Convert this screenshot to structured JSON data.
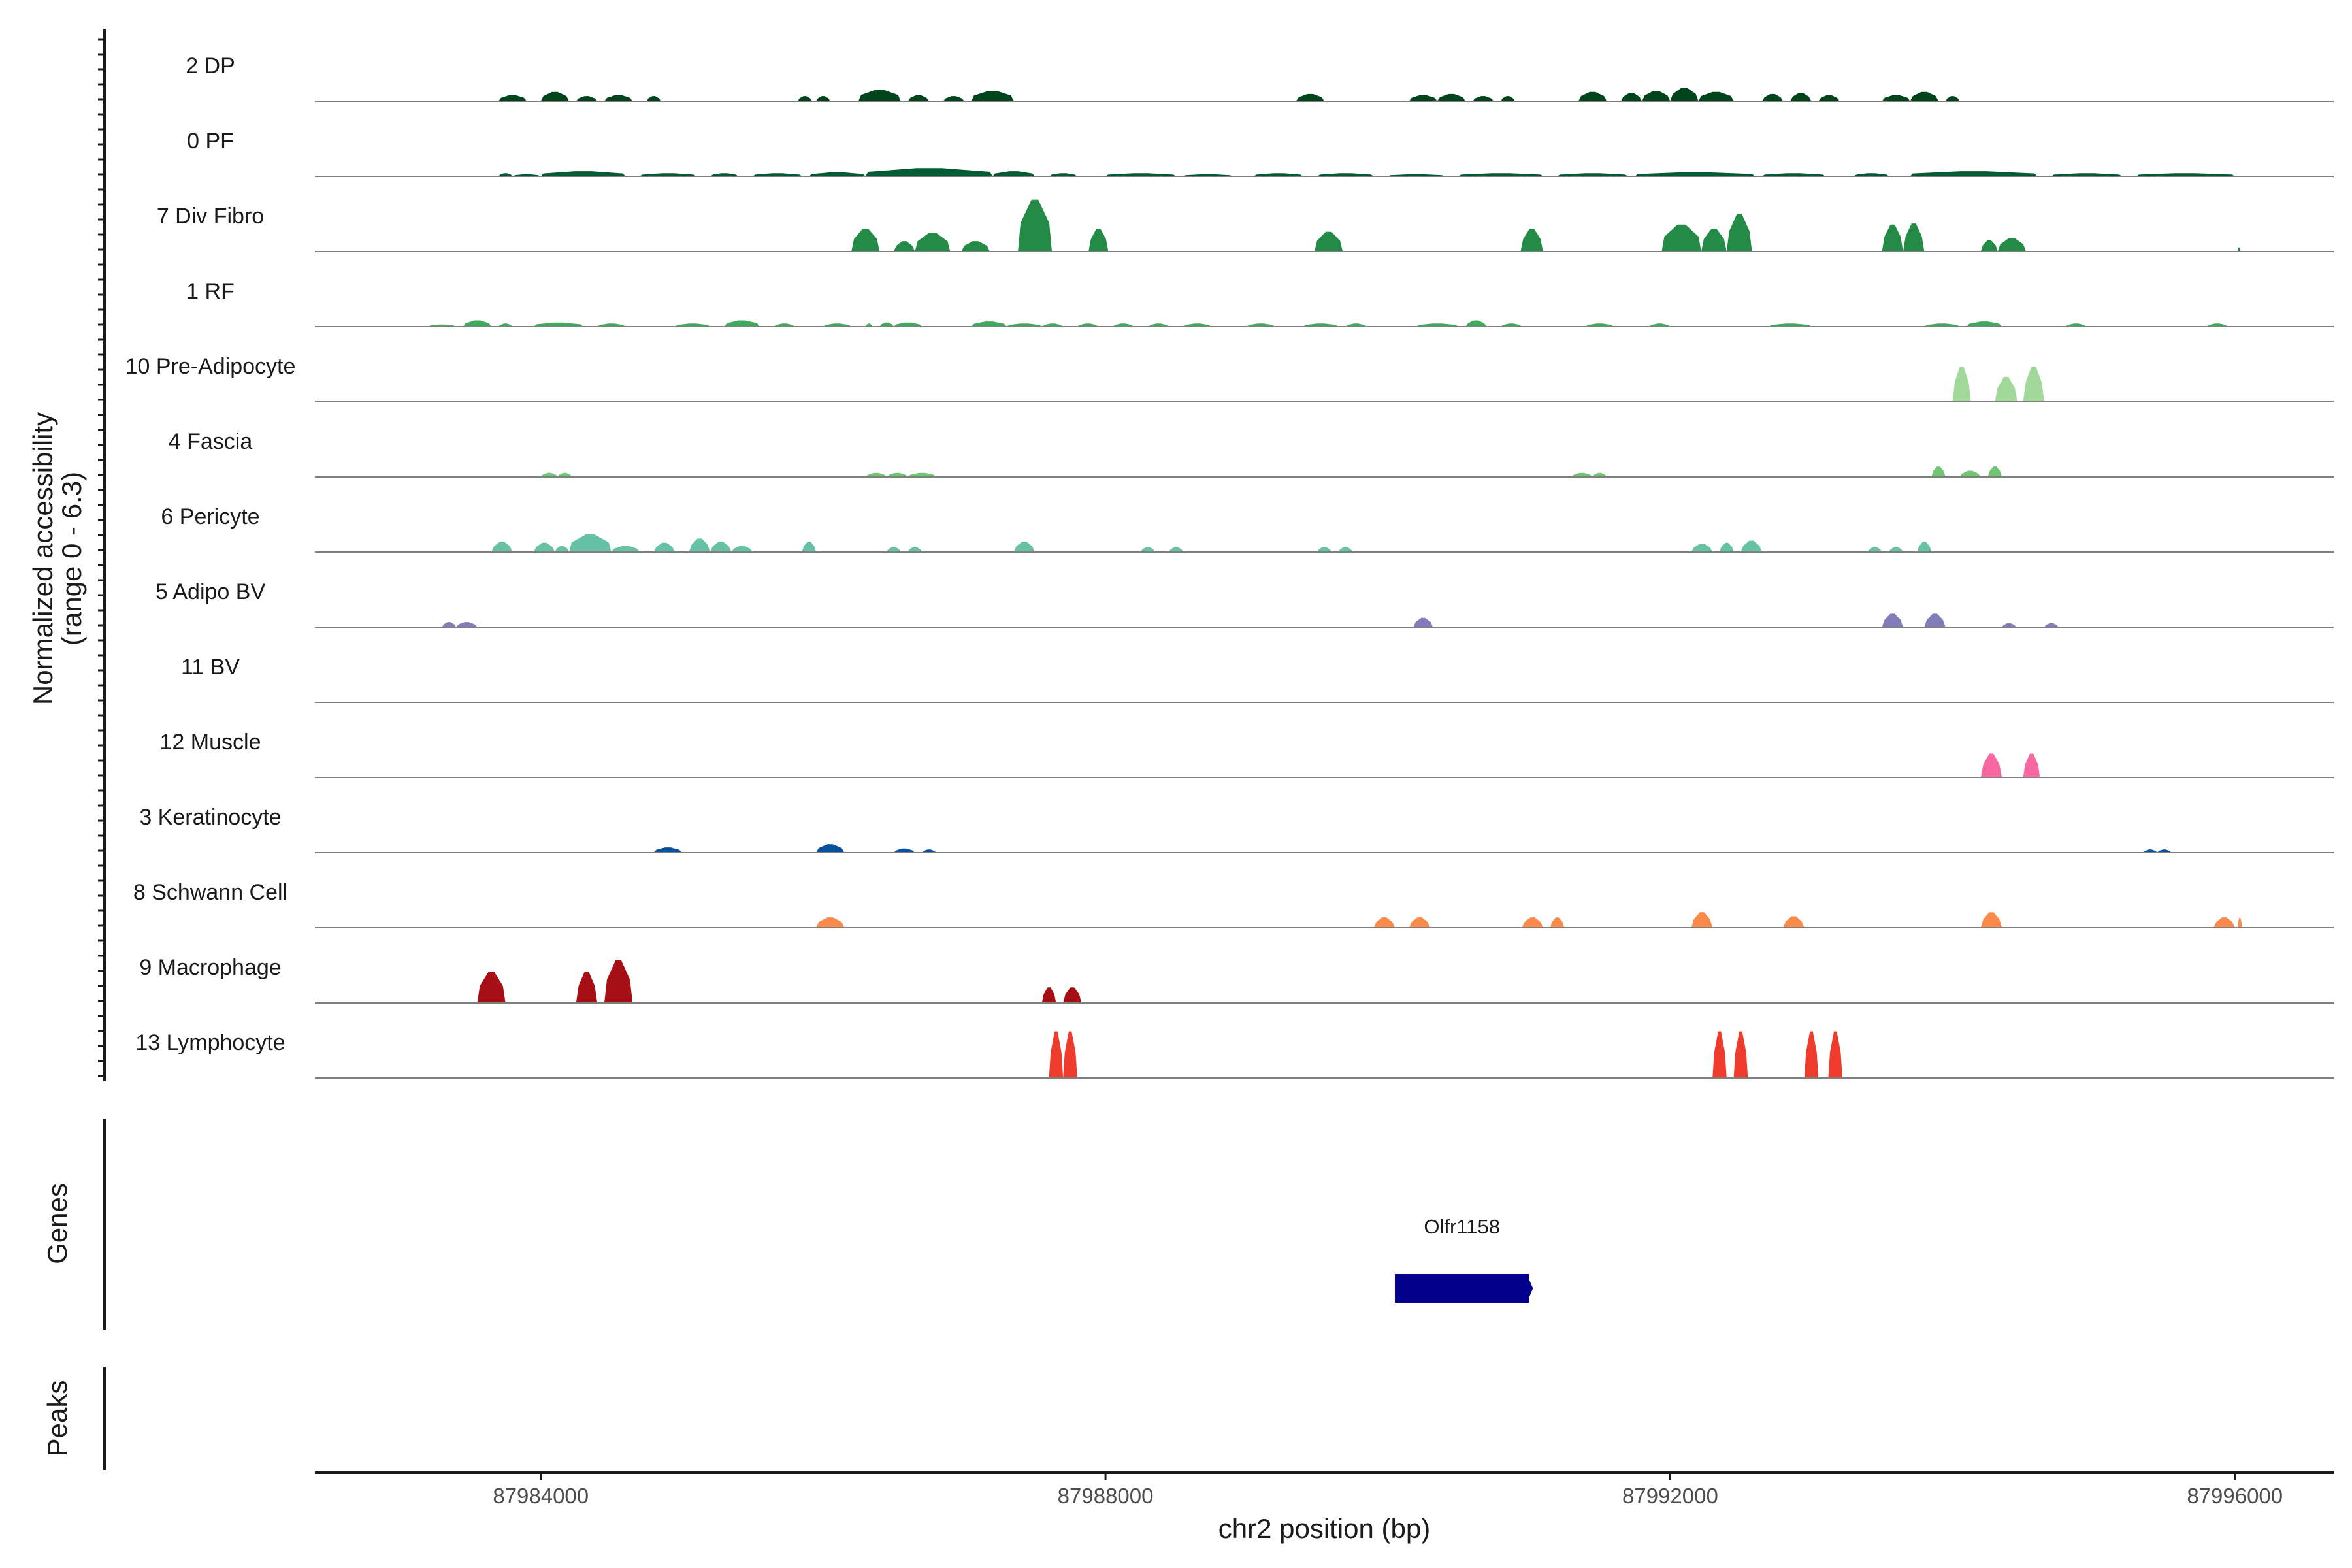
{
  "chart_data": {
    "type": "area",
    "subtype": "coverage-tracks",
    "title": "",
    "ylabel_lines": [
      "Normalized accessibility",
      "(range 0 - 6.3)"
    ],
    "y_range": [
      0,
      6.3
    ],
    "xlabel": "chr2 position (bp)",
    "xlim": [
      87982400,
      87996700
    ],
    "x_ticks": [
      87984000,
      87988000,
      87992000,
      87996000
    ],
    "x_tick_labels": [
      "87984000",
      "87988000",
      "87992000",
      "87996000"
    ],
    "genes_label": "Genes",
    "peaks_label": "Peaks",
    "genes": [
      {
        "name": "Olfr1158",
        "start": 87990050,
        "end": 87991000,
        "color": "#00008B"
      }
    ],
    "tracks": [
      {
        "name": "2 DP",
        "color": "#00441B",
        "peaks": [
          [
            87983700,
            87983900,
            0.6
          ],
          [
            87984000,
            87984200,
            0.9
          ],
          [
            87984250,
            87984400,
            0.5
          ],
          [
            87984450,
            87984650,
            0.6
          ],
          [
            87984750,
            87984850,
            0.5
          ],
          [
            87985820,
            87985920,
            0.5
          ],
          [
            87985950,
            87986050,
            0.5
          ],
          [
            87986250,
            87986550,
            1.1
          ],
          [
            87986600,
            87986750,
            0.6
          ],
          [
            87986850,
            87987000,
            0.5
          ],
          [
            87987050,
            87987350,
            1.0
          ],
          [
            87989350,
            87989550,
            0.7
          ],
          [
            87990150,
            87990350,
            0.6
          ],
          [
            87990350,
            87990550,
            0.7
          ],
          [
            87990600,
            87990750,
            0.5
          ],
          [
            87990800,
            87990900,
            0.5
          ],
          [
            87991350,
            87991550,
            0.9
          ],
          [
            87991650,
            87991800,
            0.8
          ],
          [
            87991800,
            87992000,
            1.0
          ],
          [
            87992000,
            87992200,
            1.3
          ],
          [
            87992200,
            87992450,
            0.9
          ],
          [
            87992650,
            87992800,
            0.7
          ],
          [
            87992850,
            87993000,
            0.8
          ],
          [
            87993050,
            87993200,
            0.6
          ],
          [
            87993500,
            87993700,
            0.6
          ],
          [
            87993700,
            87993900,
            0.9
          ],
          [
            87993950,
            87994050,
            0.5
          ]
        ]
      },
      {
        "name": "0 PF",
        "color": "#005A32",
        "peaks": [
          [
            87983700,
            87983800,
            0.3
          ],
          [
            87983800,
            87984000,
            0.2
          ],
          [
            87984000,
            87984600,
            0.5
          ],
          [
            87984700,
            87985100,
            0.3
          ],
          [
            87985200,
            87985400,
            0.3
          ],
          [
            87985500,
            87985850,
            0.3
          ],
          [
            87985900,
            87986300,
            0.4
          ],
          [
            87986300,
            87987200,
            0.8
          ],
          [
            87987200,
            87987500,
            0.5
          ],
          [
            87987600,
            87987800,
            0.3
          ],
          [
            87988000,
            87988500,
            0.3
          ],
          [
            87988550,
            87988900,
            0.2
          ],
          [
            87989050,
            87989400,
            0.3
          ],
          [
            87989500,
            87989900,
            0.3
          ],
          [
            87990000,
            87990400,
            0.2
          ],
          [
            87990500,
            87991100,
            0.3
          ],
          [
            87991200,
            87991700,
            0.3
          ],
          [
            87991750,
            87992600,
            0.4
          ],
          [
            87992650,
            87993100,
            0.3
          ],
          [
            87993300,
            87993550,
            0.3
          ],
          [
            87993700,
            87994600,
            0.5
          ],
          [
            87994700,
            87995200,
            0.3
          ],
          [
            87995300,
            87996000,
            0.3
          ]
        ]
      },
      {
        "name": "7 Div Fibro",
        "color": "#238B45",
        "peaks": [
          [
            87986200,
            87986400,
            2.2
          ],
          [
            87986500,
            87986650,
            1.0
          ],
          [
            87986650,
            87986900,
            1.8
          ],
          [
            87986980,
            87987180,
            1.0
          ],
          [
            87987380,
            87987620,
            5.0
          ],
          [
            87987880,
            87988020,
            2.2
          ],
          [
            87989480,
            87989680,
            1.9
          ],
          [
            87990940,
            87991100,
            2.2
          ],
          [
            87991940,
            87992220,
            2.6
          ],
          [
            87992220,
            87992400,
            2.2
          ],
          [
            87992400,
            87992580,
            3.6
          ],
          [
            87993500,
            87993650,
            2.6
          ],
          [
            87993650,
            87993800,
            2.7
          ],
          [
            87994200,
            87994320,
            1.1
          ],
          [
            87994320,
            87994520,
            1.3
          ],
          [
            87996020,
            87996040,
            0.4
          ]
        ]
      },
      {
        "name": "1 RF",
        "color": "#41AB5D",
        "peaks": [
          [
            87983200,
            87983400,
            0.2
          ],
          [
            87983450,
            87983650,
            0.6
          ],
          [
            87983700,
            87983800,
            0.3
          ],
          [
            87983950,
            87984300,
            0.4
          ],
          [
            87984400,
            87984600,
            0.3
          ],
          [
            87984950,
            87985200,
            0.3
          ],
          [
            87985300,
            87985550,
            0.6
          ],
          [
            87985650,
            87985800,
            0.3
          ],
          [
            87986000,
            87986200,
            0.3
          ],
          [
            87986300,
            87986350,
            0.3
          ],
          [
            87986400,
            87986500,
            0.4
          ],
          [
            87986500,
            87986700,
            0.4
          ],
          [
            87987050,
            87987300,
            0.5
          ],
          [
            87987300,
            87987550,
            0.3
          ],
          [
            87987550,
            87987700,
            0.3
          ],
          [
            87987800,
            87987950,
            0.3
          ],
          [
            87988050,
            87988200,
            0.3
          ],
          [
            87988300,
            87988450,
            0.3
          ],
          [
            87988550,
            87988750,
            0.3
          ],
          [
            87989000,
            87989200,
            0.3
          ],
          [
            87989400,
            87989650,
            0.3
          ],
          [
            87989700,
            87989850,
            0.3
          ],
          [
            87990200,
            87990500,
            0.3
          ],
          [
            87990550,
            87990700,
            0.6
          ],
          [
            87990800,
            87990950,
            0.3
          ],
          [
            87991400,
            87991600,
            0.3
          ],
          [
            87991850,
            87992000,
            0.3
          ],
          [
            87992700,
            87993000,
            0.3
          ],
          [
            87993800,
            87994050,
            0.3
          ],
          [
            87994100,
            87994350,
            0.5
          ],
          [
            87994800,
            87994950,
            0.3
          ],
          [
            87995800,
            87995950,
            0.3
          ]
        ]
      },
      {
        "name": "10 Pre-Adipocyte",
        "color": "#A1D99B",
        "peaks": [
          [
            87994000,
            87994130,
            3.4
          ],
          [
            87994300,
            87994460,
            2.4
          ],
          [
            87994500,
            87994650,
            3.4
          ]
        ]
      },
      {
        "name": "4 Fascia",
        "color": "#74C476",
        "peaks": [
          [
            87984000,
            87984120,
            0.4
          ],
          [
            87984120,
            87984220,
            0.4
          ],
          [
            87986300,
            87986450,
            0.4
          ],
          [
            87986450,
            87986600,
            0.4
          ],
          [
            87986600,
            87986800,
            0.4
          ],
          [
            87991300,
            87991450,
            0.4
          ],
          [
            87991450,
            87991550,
            0.4
          ],
          [
            87993850,
            87993950,
            1.0
          ],
          [
            87994050,
            87994200,
            0.6
          ],
          [
            87994250,
            87994350,
            1.0
          ]
        ]
      },
      {
        "name": "6 Pericyte",
        "color": "#66C2A4",
        "peaks": [
          [
            87983650,
            87983800,
            1.0
          ],
          [
            87983950,
            87984100,
            0.9
          ],
          [
            87984100,
            87984200,
            0.6
          ],
          [
            87984200,
            87984500,
            1.7
          ],
          [
            87984500,
            87984700,
            0.6
          ],
          [
            87984800,
            87984950,
            0.9
          ],
          [
            87985050,
            87985200,
            1.3
          ],
          [
            87985200,
            87985350,
            1.0
          ],
          [
            87985350,
            87985500,
            0.6
          ],
          [
            87985850,
            87985950,
            1.0
          ],
          [
            87986450,
            87986550,
            0.5
          ],
          [
            87986600,
            87986700,
            0.5
          ],
          [
            87987350,
            87987500,
            1.0
          ],
          [
            87988250,
            87988350,
            0.5
          ],
          [
            87988450,
            87988550,
            0.5
          ],
          [
            87989500,
            87989600,
            0.5
          ],
          [
            87989650,
            87989750,
            0.5
          ],
          [
            87992150,
            87992300,
            0.8
          ],
          [
            87992350,
            87992450,
            0.9
          ],
          [
            87992500,
            87992650,
            1.1
          ],
          [
            87993400,
            87993500,
            0.5
          ],
          [
            87993550,
            87993650,
            0.5
          ],
          [
            87993750,
            87993850,
            1.0
          ]
        ]
      },
      {
        "name": "5 Adipo BV",
        "color": "#807DBA",
        "peaks": [
          [
            87983300,
            87983400,
            0.5
          ],
          [
            87983400,
            87983550,
            0.5
          ],
          [
            87990180,
            87990320,
            0.9
          ],
          [
            87993500,
            87993650,
            1.3
          ],
          [
            87993800,
            87993950,
            1.3
          ],
          [
            87994350,
            87994450,
            0.4
          ],
          [
            87994650,
            87994750,
            0.4
          ]
        ]
      },
      {
        "name": "11 BV",
        "color": "#6A51A3",
        "peaks": []
      },
      {
        "name": "12 Muscle",
        "color": "#F768A1",
        "peaks": [
          [
            87994200,
            87994350,
            2.3
          ],
          [
            87994500,
            87994620,
            2.3
          ]
        ]
      },
      {
        "name": "3 Keratinocyte",
        "color": "#08519C",
        "peaks": [
          [
            87984800,
            87985000,
            0.5
          ],
          [
            87985950,
            87986150,
            0.8
          ],
          [
            87986500,
            87986650,
            0.4
          ],
          [
            87986700,
            87986800,
            0.3
          ],
          [
            87995350,
            87995450,
            0.3
          ],
          [
            87995450,
            87995550,
            0.3
          ]
        ]
      },
      {
        "name": "8 Schwann Cell",
        "color": "#FB8A4A",
        "peaks": [
          [
            87985950,
            87986150,
            1.0
          ],
          [
            87989900,
            87990050,
            1.0
          ],
          [
            87990150,
            87990300,
            1.0
          ],
          [
            87990950,
            87991100,
            1.0
          ],
          [
            87991150,
            87991250,
            1.0
          ],
          [
            87992150,
            87992300,
            1.5
          ],
          [
            87992800,
            87992950,
            1.1
          ],
          [
            87994200,
            87994350,
            1.5
          ],
          [
            87995850,
            87996000,
            1.0
          ],
          [
            87996020,
            87996050,
            1.0
          ]
        ]
      },
      {
        "name": "9 Macrophage",
        "color": "#A50F15",
        "peaks": [
          [
            87983550,
            87983750,
            3.0
          ],
          [
            87984250,
            87984400,
            3.0
          ],
          [
            87984450,
            87984650,
            4.1
          ],
          [
            87987550,
            87987650,
            1.5
          ],
          [
            87987700,
            87987830,
            1.5
          ]
        ]
      },
      {
        "name": "13 Lymphocyte",
        "color": "#EF3B2C",
        "peaks": [
          [
            87987600,
            87987700,
            4.5
          ],
          [
            87987700,
            87987800,
            4.5
          ],
          [
            87992300,
            87992400,
            4.5
          ],
          [
            87992450,
            87992550,
            4.5
          ],
          [
            87992950,
            87993050,
            4.5
          ],
          [
            87993120,
            87993220,
            4.5
          ]
        ]
      }
    ]
  }
}
